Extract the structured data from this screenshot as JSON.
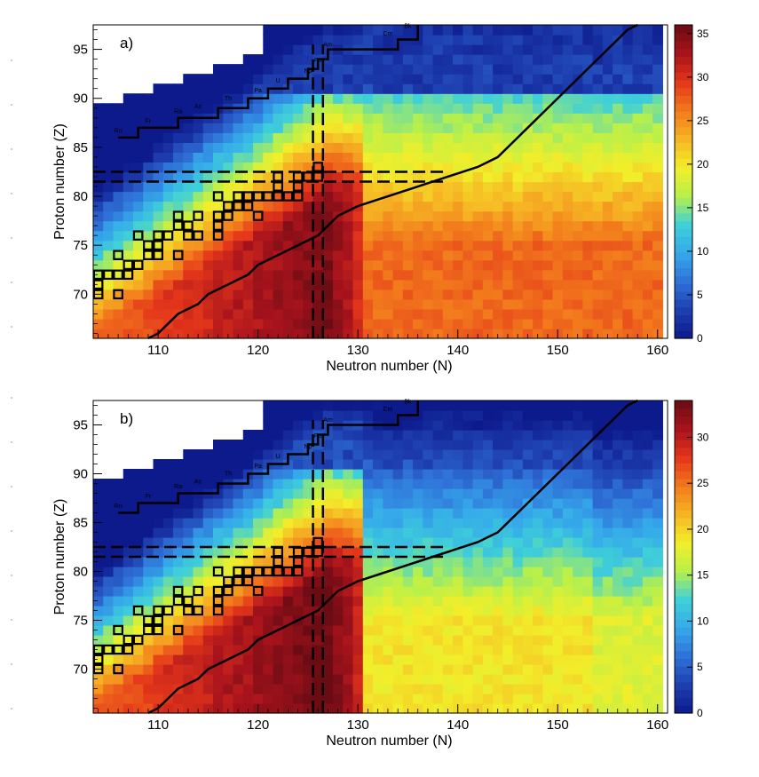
{
  "chart_data": [
    {
      "type": "heatmap",
      "panel_label": "a)",
      "xlabel": "Neutron number (N)",
      "ylabel": "Proton number (Z)",
      "xlim": [
        103.5,
        161
      ],
      "ylim": [
        65.5,
        97.5
      ],
      "x_ticks": [
        110,
        120,
        130,
        140,
        150,
        160
      ],
      "y_ticks": [
        70,
        75,
        80,
        85,
        90,
        95
      ],
      "color_scale": {
        "min": 0,
        "max": 36,
        "ticks": [
          0,
          5,
          10,
          15,
          20,
          25,
          30,
          35
        ]
      },
      "ridge_center": 127,
      "peak_value": 35,
      "tail_value": 27,
      "upper_left_value": 2
    },
    {
      "type": "heatmap",
      "panel_label": "b)",
      "xlabel": "Neutron number (N)",
      "ylabel": "Proton number (Z)",
      "xlim": [
        103.5,
        161
      ],
      "ylim": [
        65.5,
        97.5
      ],
      "x_ticks": [
        110,
        120,
        130,
        140,
        150,
        160
      ],
      "y_ticks": [
        70,
        75,
        80,
        85,
        90,
        95
      ],
      "color_scale": {
        "min": 0,
        "max": 34,
        "ticks": [
          0,
          5,
          10,
          15,
          20,
          25,
          30
        ]
      },
      "ridge_center": 127,
      "peak_value": 34,
      "tail_value": 19,
      "upper_left_value": 3
    }
  ],
  "element_labels": [
    "Rn",
    "Fr",
    "Ra",
    "Ac",
    "Th",
    "Pa",
    "U",
    "Np",
    "Pu",
    "Am",
    "Cm",
    "Bk"
  ],
  "colors": {
    "line": "#000000",
    "stops": [
      "#0d1a8c",
      "#1e3fb0",
      "#2f72d8",
      "#35a9ea",
      "#3fd0d8",
      "#b8f04a",
      "#f2ee2a",
      "#f6b524",
      "#f27a1c",
      "#e4361b",
      "#a8131c",
      "#6b0c14"
    ]
  }
}
